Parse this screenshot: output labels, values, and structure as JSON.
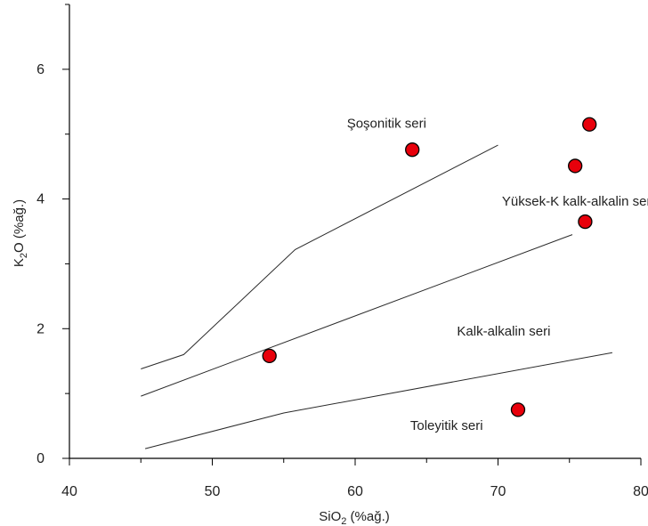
{
  "chart_data": {
    "type": "scatter",
    "xlim": [
      40,
      80
    ],
    "ylim": [
      0,
      7
    ],
    "x_ticks": [
      40,
      50,
      60,
      70,
      80
    ],
    "y_ticks": [
      0,
      2,
      4,
      6
    ],
    "x_tick_labels": [
      "40",
      "50",
      "60",
      "70",
      "80"
    ],
    "y_tick_labels": [
      "0",
      "2",
      "4",
      "6"
    ],
    "xlabel": {
      "base": "SiO",
      "sub": "2",
      "rest": " (%ağ.)"
    },
    "ylabel": {
      "base": "K",
      "sub": "2",
      "rest": "O (%ağ.)"
    },
    "grid": false,
    "boundary_lines": [
      {
        "points": [
          [
            45,
            1.38
          ],
          [
            48,
            1.6
          ],
          [
            55.8,
            3.22
          ],
          [
            70,
            4.83
          ]
        ]
      },
      {
        "points": [
          [
            45,
            0.96
          ],
          [
            75.2,
            3.45
          ]
        ]
      },
      {
        "points": [
          [
            45.3,
            0.15
          ],
          [
            55,
            0.7
          ],
          [
            78,
            1.63
          ]
        ]
      }
    ],
    "points": [
      {
        "x": 54,
        "y": 1.58
      },
      {
        "x": 64,
        "y": 4.76
      },
      {
        "x": 71.4,
        "y": 0.75
      },
      {
        "x": 75.4,
        "y": 4.51
      },
      {
        "x": 76.1,
        "y": 3.65
      },
      {
        "x": 76.4,
        "y": 5.15
      }
    ],
    "point_color": "#e8000b",
    "field_labels": [
      {
        "text": "Şoşonitik seri",
        "x": 62.2,
        "y": 5.17
      },
      {
        "text": "Yüksek-K kalk-alkalin seri",
        "x": 75.6,
        "y": 3.97
      },
      {
        "text": "Kalk-alkalin seri",
        "x": 70.4,
        "y": 1.96
      },
      {
        "text": "Toleyitik seri",
        "x": 66.4,
        "y": 0.51
      }
    ]
  }
}
